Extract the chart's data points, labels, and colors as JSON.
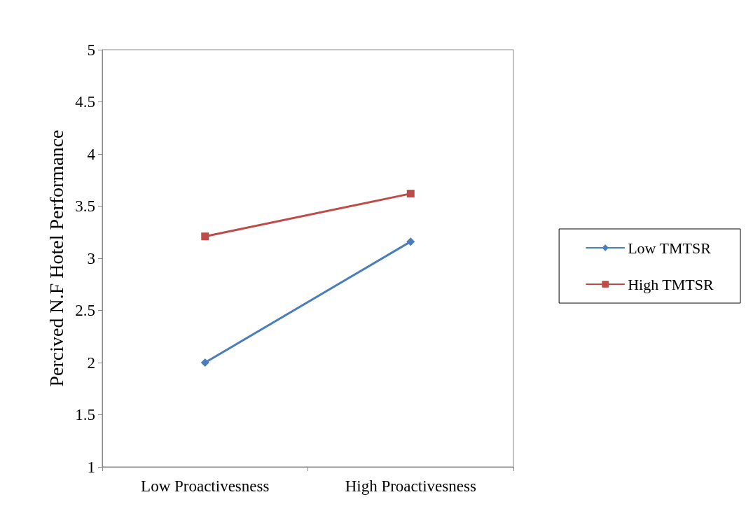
{
  "chart_data": {
    "type": "line",
    "ylabel": "Percived N.F Hotel Performance",
    "categories": [
      "Low Proactivesness",
      "High Proactivesness"
    ],
    "series": [
      {
        "name": "Low TMTSR",
        "color": "#4a7ebb",
        "marker": "diamond",
        "values": [
          2.0,
          3.16
        ]
      },
      {
        "name": "High TMTSR",
        "color": "#be4b48",
        "marker": "square",
        "values": [
          3.21,
          3.62
        ]
      }
    ],
    "ylim": [
      1,
      5
    ],
    "yticks": [
      1,
      1.5,
      2,
      2.5,
      3,
      3.5,
      4,
      4.5,
      5
    ],
    "grid": false,
    "legend": "right",
    "line_style": "solid"
  }
}
